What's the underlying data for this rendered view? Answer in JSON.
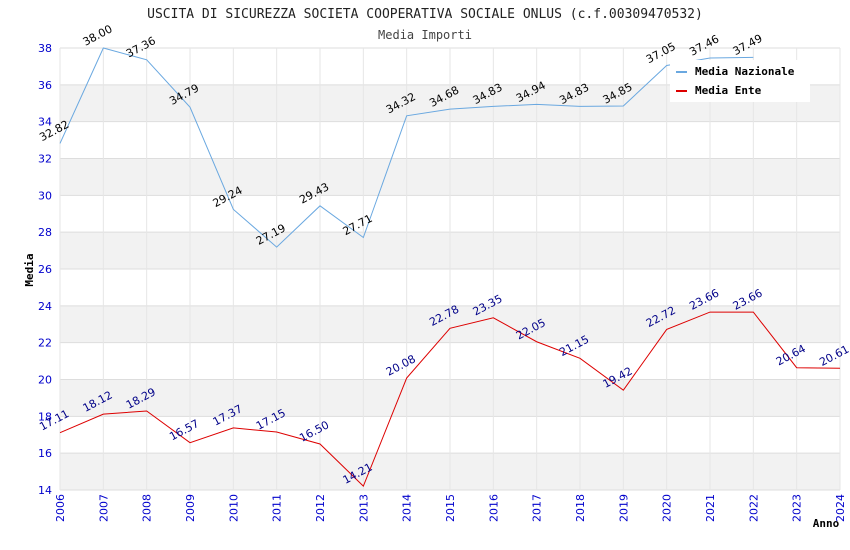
{
  "chart_data": {
    "type": "line",
    "title": "USCITA DI SICUREZZA SOCIETA COOPERATIVA SOCIALE ONLUS (c.f.00309470532)",
    "subtitle": "Media Importi",
    "xlabel": "Anno",
    "ylabel": "Media",
    "categories": [
      "2006",
      "2007",
      "2008",
      "2009",
      "2010",
      "2011",
      "2012",
      "2013",
      "2014",
      "2015",
      "2016",
      "2017",
      "2018",
      "2019",
      "2020",
      "2021",
      "2022",
      "2023",
      "2024"
    ],
    "ylim": [
      14,
      38
    ],
    "yticks": [
      14,
      16,
      18,
      20,
      22,
      24,
      26,
      28,
      30,
      32,
      34,
      36,
      38
    ],
    "legend_position": "top-right",
    "series": [
      {
        "name": "Media Nazionale",
        "color": "#6aa8e0",
        "values": [
          32.82,
          38.0,
          37.36,
          34.79,
          29.24,
          27.19,
          29.43,
          27.71,
          34.32,
          34.68,
          34.83,
          34.94,
          34.83,
          34.85,
          37.05,
          37.46,
          37.49,
          null,
          null
        ],
        "labels": [
          "32.82",
          "38.00",
          "37.36",
          "34.79",
          "29.24",
          "27.19",
          "29.43",
          "27.71",
          "34.32",
          "34.68",
          "34.83",
          "34.94",
          "34.83",
          "34.85",
          "37.05",
          "37.46",
          "37.49",
          "",
          ""
        ]
      },
      {
        "name": "Media Ente",
        "color": "#dd0000",
        "values": [
          17.11,
          18.12,
          18.29,
          16.57,
          17.37,
          17.15,
          16.5,
          14.21,
          20.08,
          22.78,
          23.35,
          22.05,
          21.15,
          19.42,
          22.72,
          23.66,
          23.66,
          20.64,
          20.61
        ],
        "labels": [
          "17.11",
          "18.12",
          "18.29",
          "16.57",
          "17.37",
          "17.15",
          "16.50",
          "14.21",
          "20.08",
          "22.78",
          "23.35",
          "22.05",
          "21.15",
          "19.42",
          "22.72",
          "23.66",
          "23.66",
          "20.64",
          "20.61"
        ]
      }
    ]
  }
}
